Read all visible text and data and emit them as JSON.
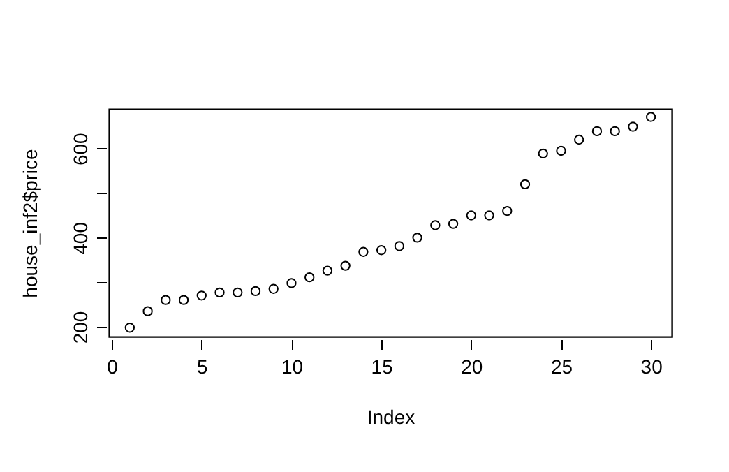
{
  "chart_data": {
    "type": "scatter",
    "xlabel": "Index",
    "ylabel": "house_inf2$price",
    "x": [
      1,
      2,
      3,
      4,
      5,
      6,
      7,
      8,
      9,
      10,
      11,
      12,
      13,
      14,
      15,
      16,
      17,
      18,
      19,
      20,
      21,
      22,
      23,
      24,
      25,
      26,
      27,
      28,
      29,
      30
    ],
    "values": [
      198,
      235,
      260,
      260,
      270,
      277,
      277,
      280,
      285,
      298,
      311,
      326,
      337,
      368,
      372,
      381,
      400,
      428,
      431,
      450,
      450,
      460,
      520,
      589,
      595,
      620,
      639,
      639,
      649,
      671
    ],
    "color": "#000000",
    "marker": "circle",
    "grid": false,
    "xlim": [
      -0.16,
      31.16
    ],
    "xticks": [
      0,
      5,
      10,
      15,
      20,
      25,
      30
    ],
    "ylim": [
      178,
      689
    ],
    "yticks": [
      200,
      {
        "value": 300,
        "label": null
      },
      400,
      {
        "value": 500,
        "label": null
      },
      600
    ]
  }
}
